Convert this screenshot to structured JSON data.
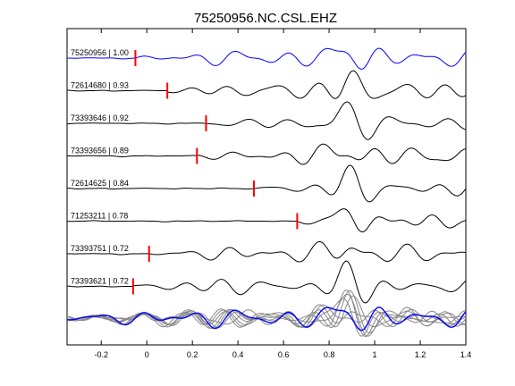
{
  "chart_data": {
    "type": "line",
    "title": "75250956.NC.CSL.EHZ",
    "xlabel": "",
    "ylabel": "",
    "xlim": [
      -0.35,
      1.4
    ],
    "xticks": [
      -0.2,
      0,
      0.2,
      0.4,
      0.6,
      0.8,
      1,
      1.2,
      1.4
    ],
    "xtick_labels": [
      "-0.2",
      "0",
      "0.2",
      "0.4",
      "0.6",
      "0.8",
      "1",
      "1.2",
      "1.4"
    ],
    "grid": false,
    "colors": {
      "reference_trace": "#0000ff",
      "trace": "#000000",
      "pick_marker": "#ff0000",
      "stack_gray": "#888888"
    },
    "traces": [
      {
        "label": "75250956 | 1.00",
        "pick_time": -0.05,
        "reference": true
      },
      {
        "label": "72614680 | 0.93",
        "pick_time": 0.09
      },
      {
        "label": "73393646 | 0.92",
        "pick_time": 0.26
      },
      {
        "label": "73393656 | 0.89",
        "pick_time": 0.22
      },
      {
        "label": "72614625 | 0.84",
        "pick_time": 0.47
      },
      {
        "label": "71253211 | 0.78",
        "pick_time": 0.66
      },
      {
        "label": "73393751 | 0.72",
        "pick_time": 0.01
      },
      {
        "label": "73393621 | 0.72",
        "pick_time": -0.06
      }
    ]
  }
}
